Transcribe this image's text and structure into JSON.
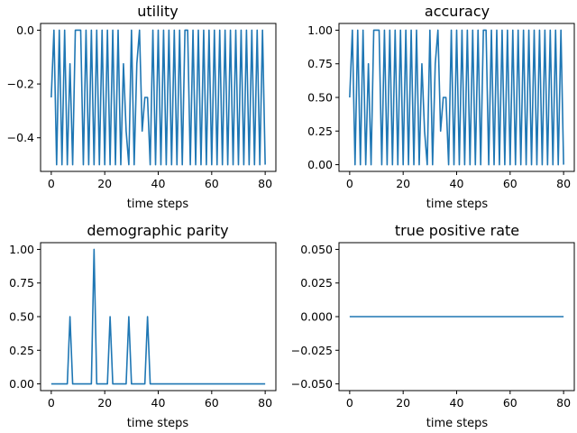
{
  "chart_data": [
    {
      "type": "line",
      "title": "utility",
      "xlabel": "time steps",
      "ylabel": "",
      "xlim": [
        -4,
        84
      ],
      "ylim": [
        -0.525,
        0.025
      ],
      "xticks": [
        0,
        20,
        40,
        60,
        80
      ],
      "yticks": [
        0.0,
        -0.2,
        -0.4
      ],
      "ytick_labels": [
        "0.0",
        "−0.2",
        "−0.4"
      ],
      "series": [
        {
          "values": [
            -0.25,
            0,
            -0.5,
            0,
            -0.5,
            0,
            -0.5,
            -0.125,
            -0.5,
            0,
            0,
            0,
            -0.5,
            0,
            -0.5,
            0,
            -0.5,
            0,
            -0.5,
            0,
            -0.5,
            0,
            -0.5,
            0,
            -0.5,
            0,
            -0.5,
            -0.125,
            -0.375,
            -0.5,
            0,
            -0.5,
            -0.125,
            0,
            -0.375,
            -0.25,
            -0.25,
            -0.5,
            0,
            -0.5,
            0,
            -0.5,
            0,
            -0.5,
            0,
            -0.5,
            0,
            -0.5,
            0,
            -0.5,
            0,
            0,
            -0.5,
            0,
            -0.5,
            0,
            -0.5,
            0,
            -0.5,
            0,
            -0.5,
            0,
            -0.5,
            0,
            -0.5,
            0,
            -0.5,
            0,
            -0.5,
            0,
            -0.5,
            0,
            -0.5,
            0,
            -0.5,
            0,
            -0.5,
            0,
            -0.5,
            0,
            -0.5
          ]
        }
      ]
    },
    {
      "type": "line",
      "title": "accuracy",
      "xlabel": "time steps",
      "ylabel": "",
      "xlim": [
        -4,
        84
      ],
      "ylim": [
        -0.05,
        1.05
      ],
      "xticks": [
        0,
        20,
        40,
        60,
        80
      ],
      "yticks": [
        0.0,
        0.25,
        0.5,
        0.75,
        1.0
      ],
      "ytick_labels": [
        "0.00",
        "0.25",
        "0.50",
        "0.75",
        "1.00"
      ],
      "series": [
        {
          "values": [
            0.5,
            1,
            0,
            1,
            0,
            1,
            0,
            0.75,
            0,
            1,
            1,
            1,
            0,
            1,
            0,
            1,
            0,
            1,
            0,
            1,
            0,
            1,
            0,
            1,
            0,
            1,
            0,
            0.75,
            0.25,
            0,
            1,
            0,
            0.75,
            1,
            0.25,
            0.5,
            0.5,
            0,
            1,
            0,
            1,
            0,
            1,
            0,
            1,
            0,
            1,
            0,
            1,
            0,
            1,
            1,
            0,
            1,
            0,
            1,
            0,
            1,
            0,
            1,
            0,
            1,
            0,
            1,
            0,
            1,
            0,
            1,
            0,
            1,
            0,
            1,
            0,
            1,
            0,
            1,
            0,
            1,
            0,
            1,
            0
          ]
        }
      ]
    },
    {
      "type": "line",
      "title": "demographic parity",
      "xlabel": "time steps",
      "ylabel": "",
      "xlim": [
        -4,
        84
      ],
      "ylim": [
        -0.05,
        1.05
      ],
      "xticks": [
        0,
        20,
        40,
        60,
        80
      ],
      "yticks": [
        0.0,
        0.25,
        0.5,
        0.75,
        1.0
      ],
      "ytick_labels": [
        "0.00",
        "0.25",
        "0.50",
        "0.75",
        "1.00"
      ],
      "series": [
        {
          "values": [
            0,
            0,
            0,
            0,
            0,
            0,
            0,
            0.5,
            0,
            0,
            0,
            0,
            0,
            0,
            0,
            0,
            1,
            0,
            0,
            0,
            0,
            0,
            0.5,
            0,
            0,
            0,
            0,
            0,
            0,
            0.5,
            0,
            0,
            0,
            0,
            0,
            0,
            0.5,
            0,
            0,
            0,
            0,
            0,
            0,
            0,
            0,
            0,
            0,
            0,
            0,
            0,
            0,
            0,
            0,
            0,
            0,
            0,
            0,
            0,
            0,
            0,
            0,
            0,
            0,
            0,
            0,
            0,
            0,
            0,
            0,
            0,
            0,
            0,
            0,
            0,
            0,
            0,
            0,
            0,
            0,
            0,
            0
          ]
        }
      ]
    },
    {
      "type": "line",
      "title": "true positive rate",
      "xlabel": "time steps",
      "ylabel": "",
      "xlim": [
        -4,
        84
      ],
      "ylim": [
        -0.055,
        0.055
      ],
      "xticks": [
        0,
        20,
        40,
        60,
        80
      ],
      "yticks": [
        0.05,
        0.025,
        0.0,
        -0.025,
        -0.05
      ],
      "ytick_labels": [
        "0.050",
        "0.025",
        "0.000",
        "−0.025",
        "−0.050"
      ],
      "series": [
        {
          "values": [
            0,
            0,
            0,
            0,
            0,
            0,
            0,
            0,
            0,
            0,
            0,
            0,
            0,
            0,
            0,
            0,
            0,
            0,
            0,
            0,
            0,
            0,
            0,
            0,
            0,
            0,
            0,
            0,
            0,
            0,
            0,
            0,
            0,
            0,
            0,
            0,
            0,
            0,
            0,
            0,
            0,
            0,
            0,
            0,
            0,
            0,
            0,
            0,
            0,
            0,
            0,
            0,
            0,
            0,
            0,
            0,
            0,
            0,
            0,
            0,
            0,
            0,
            0,
            0,
            0,
            0,
            0,
            0,
            0,
            0,
            0,
            0,
            0,
            0,
            0,
            0,
            0,
            0,
            0,
            0,
            0
          ]
        }
      ]
    }
  ],
  "colors": {
    "series": "#1f77b4"
  }
}
